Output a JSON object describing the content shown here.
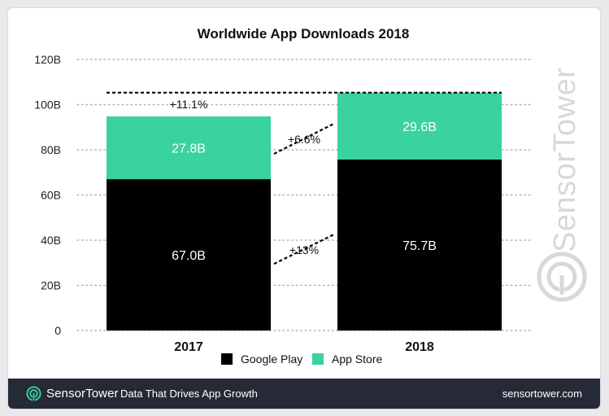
{
  "chart_data": {
    "type": "bar",
    "stacked": true,
    "title": "Worldwide App Downloads 2018",
    "categories": [
      "2017",
      "2018"
    ],
    "series": [
      {
        "name": "Google Play",
        "color": "#000000",
        "values": [
          67.0,
          75.7
        ],
        "labels": [
          "67.0B",
          "75.7B"
        ]
      },
      {
        "name": "App Store",
        "color": "#3ad29f",
        "values": [
          27.8,
          29.6
        ],
        "labels": [
          "27.8B",
          "29.6B"
        ]
      }
    ],
    "ylim": [
      0,
      120
    ],
    "yticks": [
      0,
      20,
      40,
      60,
      80,
      100,
      120
    ],
    "ytick_labels": [
      "0",
      "20B",
      "40B",
      "60B",
      "80B",
      "100B",
      "120B"
    ],
    "annotations": {
      "total_growth": "+11.1%",
      "app_store_growth": "+6.6%",
      "google_play_growth": "+13%"
    },
    "legend_position": "bottom",
    "grid": true
  },
  "watermark": "SensorTower",
  "footer": {
    "brand": "SensorTower",
    "tagline": "Data That Drives App Growth",
    "url": "sensortower.com"
  },
  "colors": {
    "footer_bg": "#252a36",
    "app_store": "#3ad29f",
    "google_play": "#000000"
  }
}
